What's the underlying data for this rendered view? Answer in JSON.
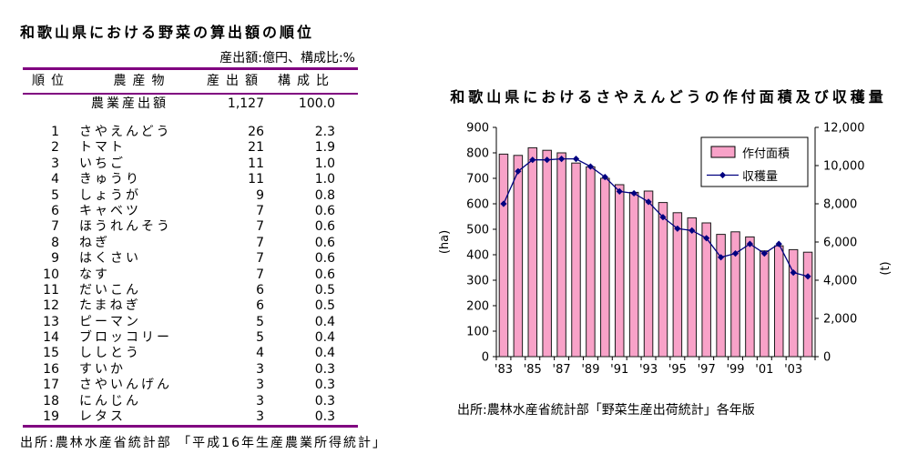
{
  "page": {
    "background": "#ffffff",
    "rule_color": "#800080"
  },
  "left_panel": {
    "title": "和歌山県における野菜の算出額の順位",
    "units_note": "産出額:億円、構成比:%",
    "table": {
      "headers": [
        "順位",
        "農産物",
        "産出額",
        "構成比"
      ],
      "total_row": {
        "rank": "",
        "name": "農業産出額",
        "output": "1,127",
        "share": "100.0"
      },
      "rows": [
        {
          "rank": "1",
          "name": "さやえんどう",
          "output": "26",
          "share": "2.3"
        },
        {
          "rank": "2",
          "name": "トマト",
          "output": "21",
          "share": "1.9"
        },
        {
          "rank": "3",
          "name": "いちご",
          "output": "11",
          "share": "1.0"
        },
        {
          "rank": "4",
          "name": "きゅうり",
          "output": "11",
          "share": "1.0"
        },
        {
          "rank": "5",
          "name": "しょうが",
          "output": "9",
          "share": "0.8"
        },
        {
          "rank": "6",
          "name": "キャベツ",
          "output": "7",
          "share": "0.6"
        },
        {
          "rank": "7",
          "name": "ほうれんそう",
          "output": "7",
          "share": "0.6"
        },
        {
          "rank": "8",
          "name": "ねぎ",
          "output": "7",
          "share": "0.6"
        },
        {
          "rank": "9",
          "name": "はくさい",
          "output": "7",
          "share": "0.6"
        },
        {
          "rank": "10",
          "name": "なす",
          "output": "7",
          "share": "0.6"
        },
        {
          "rank": "11",
          "name": "だいこん",
          "output": "6",
          "share": "0.5"
        },
        {
          "rank": "12",
          "name": "たまねぎ",
          "output": "6",
          "share": "0.5"
        },
        {
          "rank": "13",
          "name": "ピーマン",
          "output": "5",
          "share": "0.4"
        },
        {
          "rank": "14",
          "name": "ブロッコリー",
          "output": "5",
          "share": "0.4"
        },
        {
          "rank": "15",
          "name": "ししとう",
          "output": "4",
          "share": "0.4"
        },
        {
          "rank": "16",
          "name": "すいか",
          "output": "3",
          "share": "0.3"
        },
        {
          "rank": "17",
          "name": "さやいんげん",
          "output": "3",
          "share": "0.3"
        },
        {
          "rank": "18",
          "name": "にんじん",
          "output": "3",
          "share": "0.3"
        },
        {
          "rank": "19",
          "name": "レタス",
          "output": "3",
          "share": "0.3"
        }
      ]
    },
    "source": "出所:農林水産省統計部 「平成16年生産農業所得統計」"
  },
  "right_panel": {
    "title": "和歌山県におけるさやえんどうの作付面積及び収穫量",
    "source": "出所:農林水産省統計部「野菜生産出荷統計」各年版"
  },
  "chart_data": {
    "type": "bar",
    "title": "和歌山県におけるさやえんどうの作付面積及び収穫量",
    "categories": [
      "'83",
      "'84",
      "'85",
      "'86",
      "'87",
      "'88",
      "'89",
      "'90",
      "'91",
      "'92",
      "'93",
      "'94",
      "'95",
      "'96",
      "'97",
      "'98",
      "'99",
      "'00",
      "'01",
      "'02",
      "'03",
      "'04"
    ],
    "x_tick_labels_shown": [
      "'83",
      "'85",
      "'87",
      "'89",
      "'91",
      "'93",
      "'95",
      "'97",
      "'99",
      "'01",
      "'03"
    ],
    "label_every": 2,
    "series": [
      {
        "name": "作付面積",
        "type": "bar",
        "axis": "left",
        "unit": "ha",
        "color": "#f8a2c8",
        "border_color": "#1a1a1a",
        "values": [
          795,
          790,
          820,
          810,
          800,
          760,
          745,
          700,
          675,
          645,
          650,
          605,
          565,
          545,
          525,
          480,
          490,
          470,
          415,
          435,
          420,
          410
        ]
      },
      {
        "name": "収穫量",
        "type": "line",
        "axis": "right",
        "unit": "t",
        "color": "#000080",
        "marker": "diamond",
        "values": [
          8000,
          9700,
          10300,
          10300,
          10350,
          10350,
          9950,
          9400,
          8650,
          8550,
          8100,
          7300,
          6700,
          6600,
          6200,
          5200,
          5400,
          5900,
          5400,
          5900,
          4400,
          4200
        ]
      }
    ],
    "left_axis": {
      "label": "(ha)",
      "min": 0,
      "max": 900,
      "step": 100
    },
    "right_axis": {
      "label": "(t)",
      "min": 0,
      "max": 12000,
      "step": 2000
    },
    "legend_position": "top-right",
    "grid": false,
    "plot_background": "#ffffff"
  }
}
